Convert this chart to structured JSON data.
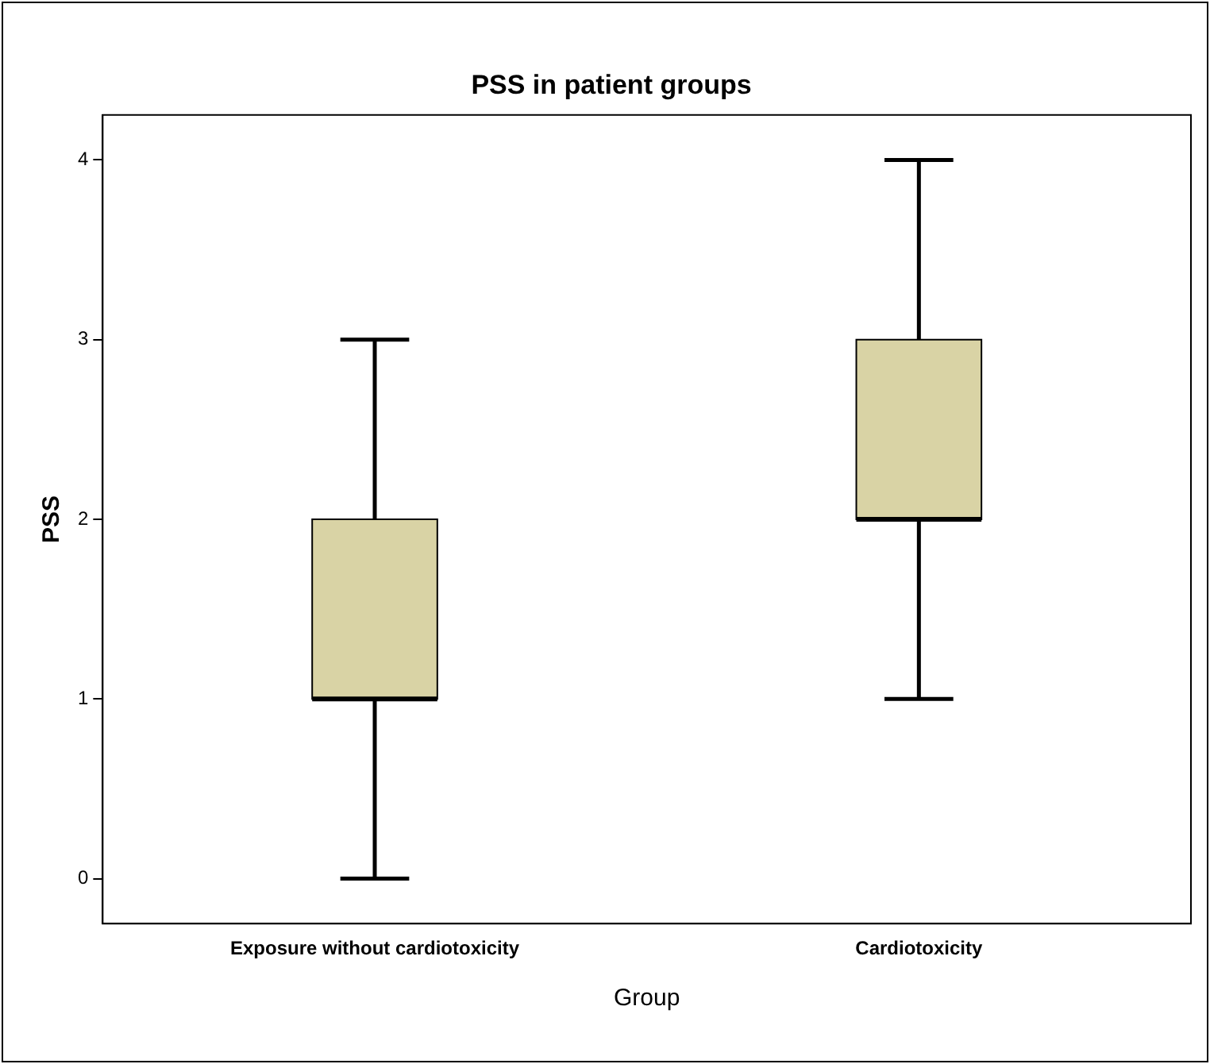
{
  "chart_data": {
    "type": "box",
    "title": "PSS in patient groups",
    "xlabel": "Group",
    "ylabel": "PSS",
    "categories": [
      "Exposure without cardiotoxicity",
      "Cardiotoxicity"
    ],
    "color": "#d9d3a5",
    "boxes": [
      {
        "low": 0,
        "q1": 1,
        "median": 1,
        "q3": 2,
        "high": 3
      },
      {
        "low": 1,
        "q1": 2,
        "median": 2,
        "q3": 3,
        "high": 4
      }
    ],
    "ylim": [
      -0.25,
      4.25
    ],
    "yticks": [
      0,
      1,
      2,
      3,
      4
    ],
    "grid": false,
    "legend": false
  }
}
